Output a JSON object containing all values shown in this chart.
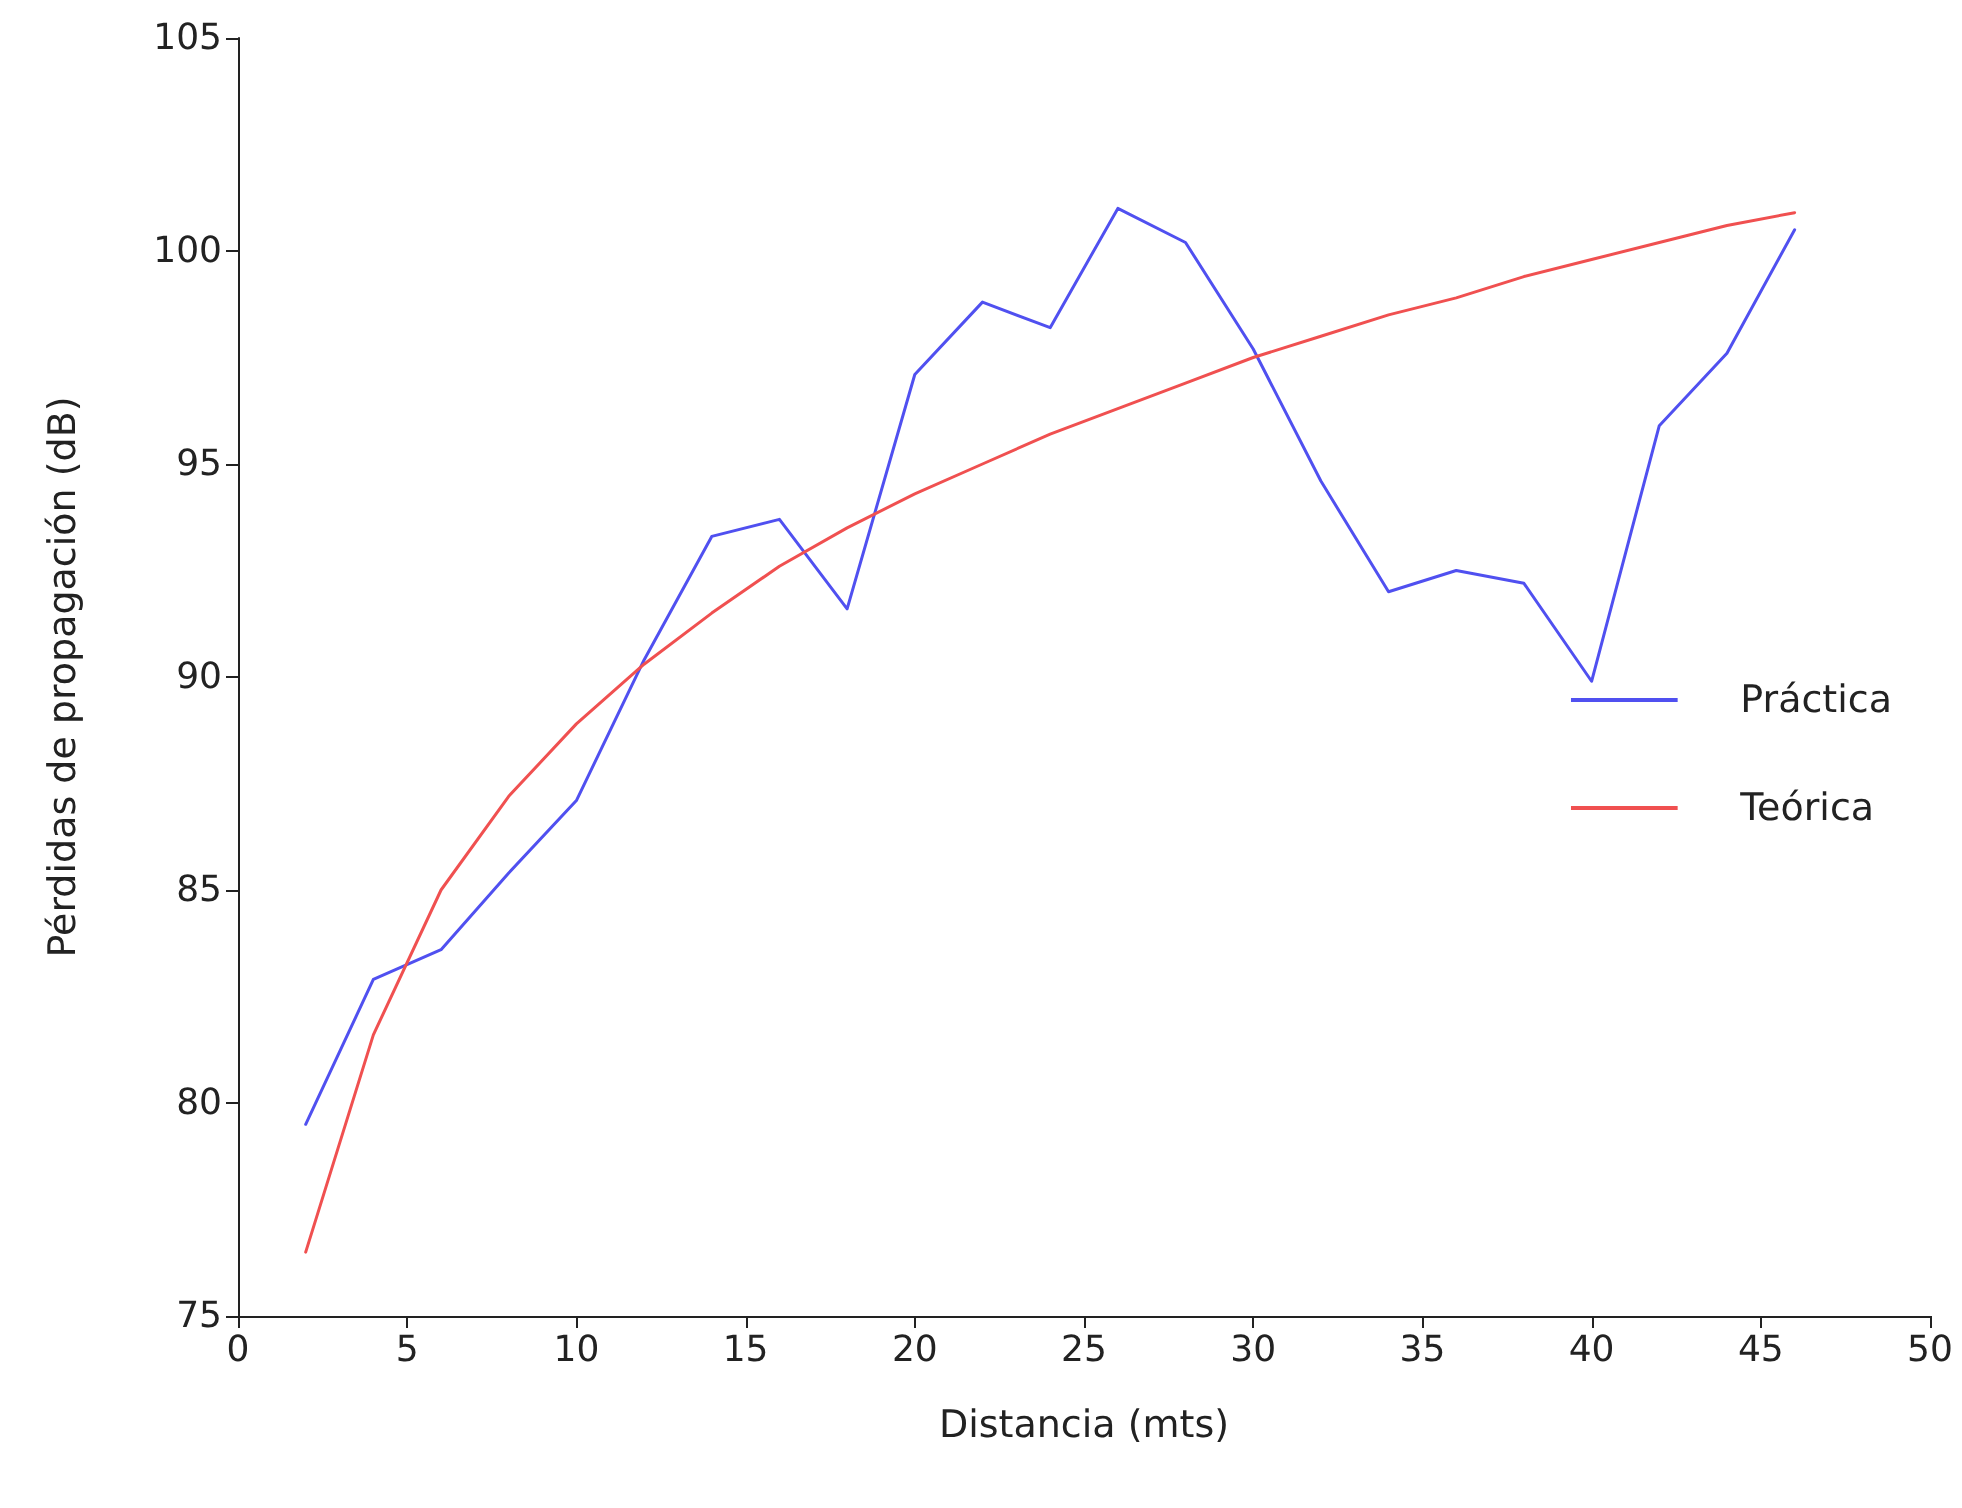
{
  "chart_data": {
    "type": "line",
    "xlabel": "Distancia (mts)",
    "ylabel": "Pérdidas de propagación (dB)",
    "x": [
      2,
      4,
      6,
      8,
      10,
      12,
      14,
      16,
      18,
      20,
      22,
      24,
      26,
      28,
      30,
      32,
      34,
      36,
      38,
      40,
      42,
      44,
      46
    ],
    "series": [
      {
        "name": "Práctica",
        "color": "#5050f0",
        "values": [
          79.5,
          82.9,
          83.6,
          85.4,
          87.1,
          90.4,
          93.3,
          93.7,
          91.6,
          97.1,
          98.8,
          98.2,
          101.0,
          100.2,
          97.7,
          94.6,
          92.0,
          92.5,
          92.2,
          89.9,
          95.9,
          97.6,
          100.5
        ]
      },
      {
        "name": "Teórica",
        "color": "#f05050",
        "values": [
          76.5,
          81.6,
          85.0,
          87.2,
          88.9,
          90.3,
          91.5,
          92.6,
          93.5,
          94.3,
          95.0,
          95.7,
          96.3,
          96.9,
          97.5,
          98.0,
          98.5,
          98.9,
          99.4,
          99.8,
          100.2,
          100.6,
          100.9
        ]
      }
    ],
    "xlim": [
      0,
      50
    ],
    "xticks": [
      0,
      5,
      10,
      15,
      20,
      25,
      30,
      35,
      40,
      45,
      50
    ],
    "ylim": [
      75,
      105
    ],
    "yticks": [
      75,
      80,
      85,
      90,
      95,
      100,
      105
    ],
    "grid": false,
    "legend": "right",
    "marker": "none",
    "line_style": "solid"
  }
}
